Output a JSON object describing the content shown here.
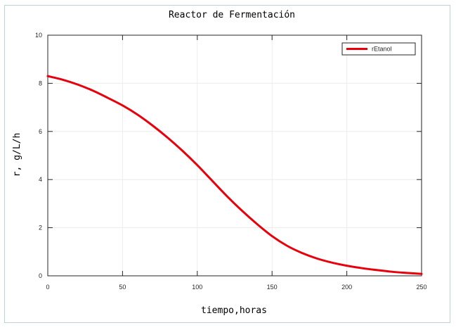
{
  "chart_data": {
    "type": "line",
    "title": "Reactor de Fermentación",
    "xlabel": "tiempo,horas",
    "ylabel": "r, g/L/h",
    "xlim": [
      0,
      250
    ],
    "ylim": [
      0,
      10
    ],
    "xticks": [
      0,
      50,
      100,
      150,
      200,
      250
    ],
    "yticks": [
      0,
      2,
      4,
      6,
      8,
      10
    ],
    "xtick_labels": [
      "0",
      "50",
      "100",
      "150",
      "200",
      "250"
    ],
    "ytick_labels": [
      "0",
      "2",
      "4",
      "6",
      "8",
      "10"
    ],
    "grid": true,
    "legend_position": "top-right",
    "series": [
      {
        "name": "rEtanol",
        "color": "#e8000b",
        "x": [
          0,
          10,
          20,
          30,
          40,
          50,
          60,
          70,
          80,
          90,
          100,
          110,
          120,
          130,
          140,
          150,
          160,
          170,
          180,
          190,
          200,
          210,
          220,
          230,
          240,
          250
        ],
        "y": [
          8.3,
          8.15,
          7.95,
          7.7,
          7.4,
          7.08,
          6.7,
          6.25,
          5.75,
          5.2,
          4.6,
          3.95,
          3.3,
          2.7,
          2.15,
          1.65,
          1.25,
          0.95,
          0.72,
          0.55,
          0.42,
          0.32,
          0.24,
          0.17,
          0.12,
          0.08
        ]
      }
    ]
  }
}
